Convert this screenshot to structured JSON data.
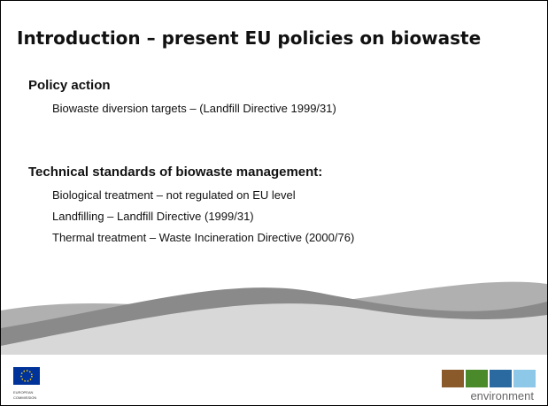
{
  "title": "Introduction – present EU policies on biowaste",
  "sections": [
    {
      "heading": "Policy action",
      "items": [
        "Biowaste diversion targets – (Landfill Directive 1999/31)"
      ]
    },
    {
      "heading": "Technical standards of biowaste management:",
      "items": [
        "Biological treatment – not regulated on EU level",
        "Landfilling – Landfill Directive (1999/31)",
        "Thermal treatment – Waste Incineration Directive (2000/76)"
      ]
    }
  ],
  "footer": {
    "logo_left": "EUROPEAN COMMISSION",
    "logo_right": "environment"
  }
}
